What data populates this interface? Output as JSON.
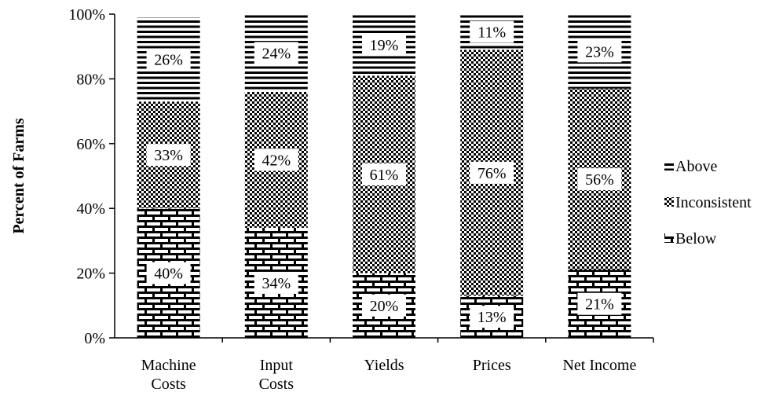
{
  "chart_data": {
    "type": "bar",
    "stacked": true,
    "percent_stacked": true,
    "title": "",
    "xlabel": "",
    "ylabel": "Percent of Farms",
    "ylim": [
      0,
      100
    ],
    "yticks": [
      "0%",
      "20%",
      "40%",
      "60%",
      "80%",
      "100%"
    ],
    "categories": [
      [
        "Machine",
        "Costs"
      ],
      [
        "Input",
        "Costs"
      ],
      [
        "Yields"
      ],
      [
        "Prices"
      ],
      [
        "Net Income"
      ]
    ],
    "series": [
      {
        "name": "Below",
        "pattern": "brick",
        "values": [
          40,
          34,
          20,
          13,
          21
        ],
        "labels": [
          "40%",
          "34%",
          "20%",
          "13%",
          "21%"
        ]
      },
      {
        "name": "Inconsistent",
        "pattern": "checker",
        "values": [
          33,
          42,
          61,
          76,
          56
        ],
        "labels": [
          "33%",
          "42%",
          "61%",
          "76%",
          "56%"
        ]
      },
      {
        "name": "Above",
        "pattern": "horizontal",
        "values": [
          26,
          24,
          19,
          11,
          23
        ],
        "labels": [
          "26%",
          "24%",
          "19%",
          "11%",
          "23%"
        ]
      }
    ],
    "legend_position": "right",
    "legend_order": [
      "Above",
      "Inconsistent",
      "Below"
    ],
    "grid": false,
    "colors": {
      "ink": "#000000",
      "background": "#ffffff"
    }
  }
}
